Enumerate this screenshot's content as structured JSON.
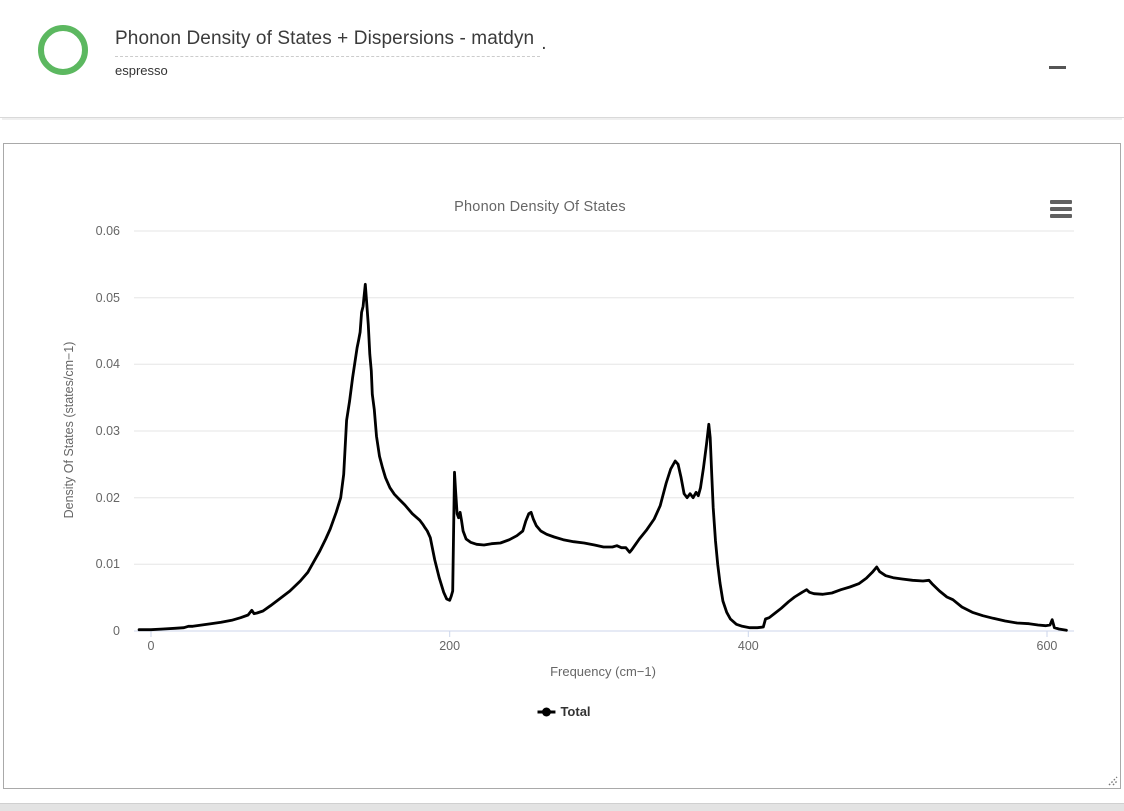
{
  "header": {
    "title": "Phonon Density of States + Dispersions - matdyn",
    "title_dot": ".",
    "subtitle": "espresso"
  },
  "icons": {
    "logo": "green-ring-icon",
    "minimize": "minus-icon",
    "chart_menu": "hamburger-icon",
    "resize": "resize-grip-icon",
    "legend_marker": "line-with-dot-marker"
  },
  "colors": {
    "accent_green": "#5cb860",
    "panel_border": "#a9a9a9",
    "grid_line": "#e6e6e6",
    "axis_line": "#ccd6eb",
    "axis_text": "#666666",
    "series_black": "#000000",
    "header_text": "#3b3b3b",
    "bottom_strip": "#e3e3e3"
  },
  "chart_data": {
    "type": "line",
    "title": "Phonon Density Of States",
    "xlabel": "Frequency (cm−1)",
    "ylabel": "Density Of States (states/cm−1)",
    "xlim": [
      -11.4,
      618.1
    ],
    "ylim": [
      0,
      0.06
    ],
    "x_ticks": [
      0,
      200,
      400,
      600
    ],
    "y_ticks": [
      0,
      0.01,
      0.02,
      0.03,
      0.04,
      0.05,
      0.06
    ],
    "grid": true,
    "legend_position": "bottom-center",
    "series": [
      {
        "name": "Total",
        "color": "#000000",
        "points": [
          [
            -8,
            0.0002
          ],
          [
            0,
            0.0002
          ],
          [
            8,
            0.0003
          ],
          [
            16,
            0.0004
          ],
          [
            22,
            0.0005
          ],
          [
            25,
            0.0007
          ],
          [
            28,
            0.0007
          ],
          [
            34,
            0.0009
          ],
          [
            40,
            0.0011
          ],
          [
            47,
            0.0013
          ],
          [
            54,
            0.0016
          ],
          [
            60,
            0.002
          ],
          [
            65,
            0.0024
          ],
          [
            67.5,
            0.0031
          ],
          [
            69,
            0.0026
          ],
          [
            71,
            0.0027
          ],
          [
            75,
            0.003
          ],
          [
            80,
            0.0038
          ],
          [
            86,
            0.0048
          ],
          [
            93,
            0.006
          ],
          [
            100,
            0.0075
          ],
          [
            105,
            0.0088
          ],
          [
            108,
            0.01
          ],
          [
            113,
            0.012
          ],
          [
            117,
            0.0138
          ],
          [
            120,
            0.0153
          ],
          [
            124,
            0.0178
          ],
          [
            127,
            0.02
          ],
          [
            129,
            0.0235
          ],
          [
            131,
            0.0316
          ],
          [
            133,
            0.0345
          ],
          [
            135,
            0.038
          ],
          [
            137,
            0.041
          ],
          [
            138,
            0.0425
          ],
          [
            139,
            0.0436
          ],
          [
            140,
            0.0448
          ],
          [
            141,
            0.0478
          ],
          [
            142,
            0.0487
          ],
          [
            142.5,
            0.0498
          ],
          [
            143.5,
            0.052
          ],
          [
            144.5,
            0.049
          ],
          [
            145.5,
            0.0459
          ],
          [
            146.5,
            0.0415
          ],
          [
            147.5,
            0.039
          ],
          [
            148.2,
            0.0355
          ],
          [
            149.5,
            0.0332
          ],
          [
            151,
            0.0292
          ],
          [
            153,
            0.0262
          ],
          [
            155,
            0.0245
          ],
          [
            157,
            0.023
          ],
          [
            160,
            0.0215
          ],
          [
            163,
            0.0205
          ],
          [
            166,
            0.0198
          ],
          [
            170,
            0.0189
          ],
          [
            175,
            0.0176
          ],
          [
            180,
            0.0166
          ],
          [
            182,
            0.016
          ],
          [
            183.5,
            0.0155
          ],
          [
            185,
            0.015
          ],
          [
            187,
            0.014
          ],
          [
            190,
            0.0107
          ],
          [
            193,
            0.008
          ],
          [
            196,
            0.0058
          ],
          [
            198,
            0.0048
          ],
          [
            200,
            0.0046
          ],
          [
            201,
            0.0052
          ],
          [
            202,
            0.006
          ],
          [
            202.6,
            0.015
          ],
          [
            203.2,
            0.0238
          ],
          [
            204,
            0.021
          ],
          [
            205,
            0.0176
          ],
          [
            206,
            0.017
          ],
          [
            207,
            0.0178
          ],
          [
            208,
            0.0165
          ],
          [
            209,
            0.015
          ],
          [
            211,
            0.0138
          ],
          [
            214,
            0.0133
          ],
          [
            218,
            0.013
          ],
          [
            223,
            0.0129
          ],
          [
            228,
            0.0131
          ],
          [
            234,
            0.0132
          ],
          [
            240,
            0.0137
          ],
          [
            245,
            0.0143
          ],
          [
            249,
            0.015
          ],
          [
            251,
            0.0165
          ],
          [
            253,
            0.0176
          ],
          [
            254.5,
            0.0178
          ],
          [
            256,
            0.0168
          ],
          [
            258,
            0.0158
          ],
          [
            261,
            0.015
          ],
          [
            265,
            0.0145
          ],
          [
            270,
            0.0141
          ],
          [
            276,
            0.0137
          ],
          [
            283,
            0.0134
          ],
          [
            290,
            0.0132
          ],
          [
            297,
            0.0129
          ],
          [
            303,
            0.0126
          ],
          [
            309,
            0.0126
          ],
          [
            312,
            0.0128
          ],
          [
            315,
            0.0125
          ],
          [
            318,
            0.0125
          ],
          [
            320.5,
            0.0118
          ],
          [
            322,
            0.0122
          ],
          [
            327,
            0.0138
          ],
          [
            332,
            0.0152
          ],
          [
            337,
            0.0168
          ],
          [
            341,
            0.0188
          ],
          [
            345,
            0.0222
          ],
          [
            348,
            0.0243
          ],
          [
            351,
            0.0255
          ],
          [
            353,
            0.025
          ],
          [
            355,
            0.023
          ],
          [
            357,
            0.0206
          ],
          [
            359,
            0.02
          ],
          [
            361,
            0.0206
          ],
          [
            363,
            0.02
          ],
          [
            365,
            0.0208
          ],
          [
            366.5,
            0.0203
          ],
          [
            368,
            0.0215
          ],
          [
            370,
            0.0245
          ],
          [
            372,
            0.028
          ],
          [
            373.5,
            0.031
          ],
          [
            374.5,
            0.029
          ],
          [
            375.5,
            0.0236
          ],
          [
            376.5,
            0.0185
          ],
          [
            378,
            0.0135
          ],
          [
            379.5,
            0.01
          ],
          [
            381,
            0.0072
          ],
          [
            383,
            0.0045
          ],
          [
            385.5,
            0.0028
          ],
          [
            388,
            0.0018
          ],
          [
            392,
            0.001
          ],
          [
            396,
            0.0007
          ],
          [
            401,
            0.0005
          ],
          [
            406,
            0.0005
          ],
          [
            410,
            0.0006
          ],
          [
            411.5,
            0.0018
          ],
          [
            414,
            0.002
          ],
          [
            418,
            0.0027
          ],
          [
            422,
            0.0034
          ],
          [
            427,
            0.0044
          ],
          [
            431,
            0.0051
          ],
          [
            436,
            0.0058
          ],
          [
            439,
            0.0062
          ],
          [
            441,
            0.0058
          ],
          [
            444,
            0.0056
          ],
          [
            450,
            0.0055
          ],
          [
            456,
            0.0057
          ],
          [
            462,
            0.0062
          ],
          [
            468,
            0.0066
          ],
          [
            474,
            0.0071
          ],
          [
            479,
            0.0079
          ],
          [
            483,
            0.0088
          ],
          [
            486,
            0.0096
          ],
          [
            488,
            0.0089
          ],
          [
            492,
            0.0083
          ],
          [
            497,
            0.008
          ],
          [
            503,
            0.0078
          ],
          [
            510,
            0.0076
          ],
          [
            517,
            0.0075
          ],
          [
            521,
            0.0076
          ],
          [
            523,
            0.0071
          ],
          [
            528,
            0.006
          ],
          [
            533,
            0.0051
          ],
          [
            537,
            0.0047
          ],
          [
            543,
            0.0036
          ],
          [
            550,
            0.0028
          ],
          [
            557,
            0.0023
          ],
          [
            564,
            0.0019
          ],
          [
            572,
            0.0015
          ],
          [
            580,
            0.0012
          ],
          [
            588,
            0.0011
          ],
          [
            594,
            0.0009
          ],
          [
            599,
            0.0008
          ],
          [
            602,
            0.0009
          ],
          [
            603.5,
            0.0017
          ],
          [
            605,
            0.0005
          ],
          [
            608,
            0.0003
          ],
          [
            611,
            0.0002
          ],
          [
            613,
            0.0001
          ]
        ]
      }
    ]
  }
}
